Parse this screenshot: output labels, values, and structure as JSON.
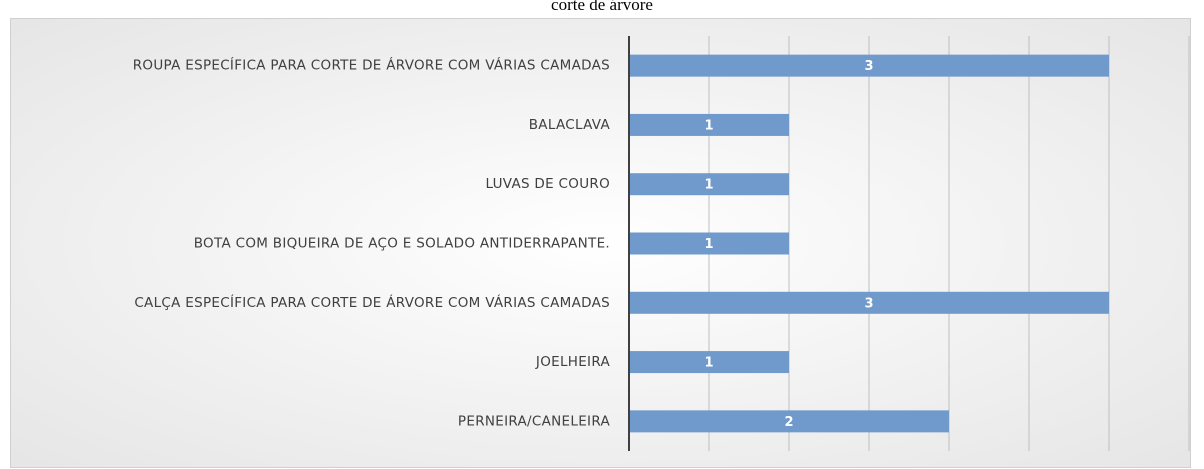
{
  "chart_data": {
    "type": "bar",
    "orientation": "horizontal",
    "title": "corte de árvore",
    "categories": [
      "ROUPA ESPECÍFICA PARA CORTE DE ÁRVORE COM VÁRIAS CAMADAS",
      "BALACLAVA",
      "LUVAS DE COURO",
      "BOTA COM BIQUEIRA DE AÇO E SOLADO ANTIDERRAPANTE.",
      "CALÇA ESPECÍFICA PARA CORTE DE ÁRVORE COM VÁRIAS CAMADAS",
      "JOELHEIRA",
      "PERNEIRA/CANELEIRA"
    ],
    "values": [
      3,
      1,
      1,
      1,
      3,
      1,
      2
    ],
    "color": "#7099cc",
    "xlim": [
      0,
      3.5
    ],
    "xticks": [
      0,
      0.5,
      1,
      1.5,
      2,
      2.5,
      3,
      3.5
    ],
    "grid": true
  }
}
